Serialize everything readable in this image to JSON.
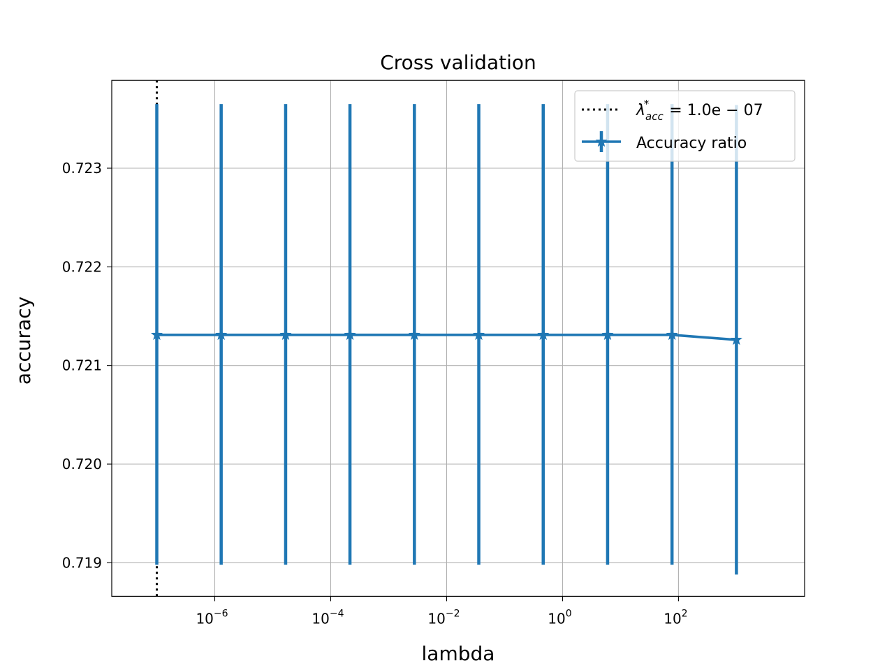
{
  "chart_data": {
    "type": "line",
    "title": "Cross validation",
    "xlabel": "lambda",
    "ylabel": "accuracy",
    "xscale": "log",
    "xlim": [
      1.67e-08,
      15000.0
    ],
    "ylim": [
      0.71866,
      0.72389
    ],
    "x_ticks": [
      {
        "base": "10",
        "exp": "−6",
        "value": 1e-06
      },
      {
        "base": "10",
        "exp": "−4",
        "value": 0.0001
      },
      {
        "base": "10",
        "exp": "−2",
        "value": 0.01
      },
      {
        "base": "10",
        "exp": "0",
        "value": 1
      },
      {
        "base": "10",
        "exp": "2",
        "value": 100
      }
    ],
    "y_ticks": [
      {
        "label": "0.719",
        "value": 0.719
      },
      {
        "label": "0.720",
        "value": 0.72
      },
      {
        "label": "0.721",
        "value": 0.721
      },
      {
        "label": "0.722",
        "value": 0.722
      },
      {
        "label": "0.723",
        "value": 0.723
      }
    ],
    "grid": true,
    "legend_position": "top-right",
    "series": [
      {
        "name": "Accuracy ratio",
        "color": "#1f77b4",
        "marker": "star",
        "errorbars": true,
        "points": [
          {
            "x": 1e-07,
            "y": 0.72131,
            "lower": 0.71898,
            "upper": 0.72365
          },
          {
            "x": 1.29e-06,
            "y": 0.72131,
            "lower": 0.71898,
            "upper": 0.72365
          },
          {
            "x": 1.67e-05,
            "y": 0.72131,
            "lower": 0.71898,
            "upper": 0.72365
          },
          {
            "x": 0.000215,
            "y": 0.72131,
            "lower": 0.71898,
            "upper": 0.72365
          },
          {
            "x": 0.00278,
            "y": 0.72131,
            "lower": 0.71898,
            "upper": 0.72365
          },
          {
            "x": 0.0359,
            "y": 0.72131,
            "lower": 0.71898,
            "upper": 0.72365
          },
          {
            "x": 0.464,
            "y": 0.72131,
            "lower": 0.71898,
            "upper": 0.72365
          },
          {
            "x": 5.99,
            "y": 0.72131,
            "lower": 0.71898,
            "upper": 0.72365
          },
          {
            "x": 77.4,
            "y": 0.72131,
            "lower": 0.71898,
            "upper": 0.72365
          },
          {
            "x": 1000,
            "y": 0.72126,
            "lower": 0.71888,
            "upper": 0.72364
          }
        ]
      }
    ],
    "vline": {
      "x": 1e-07,
      "style": "dotted",
      "color": "#000000",
      "legend_label": {
        "symbol": "λ",
        "sub": "acc",
        "sup": "*",
        "rest": "= 1.0e − 07"
      }
    }
  }
}
